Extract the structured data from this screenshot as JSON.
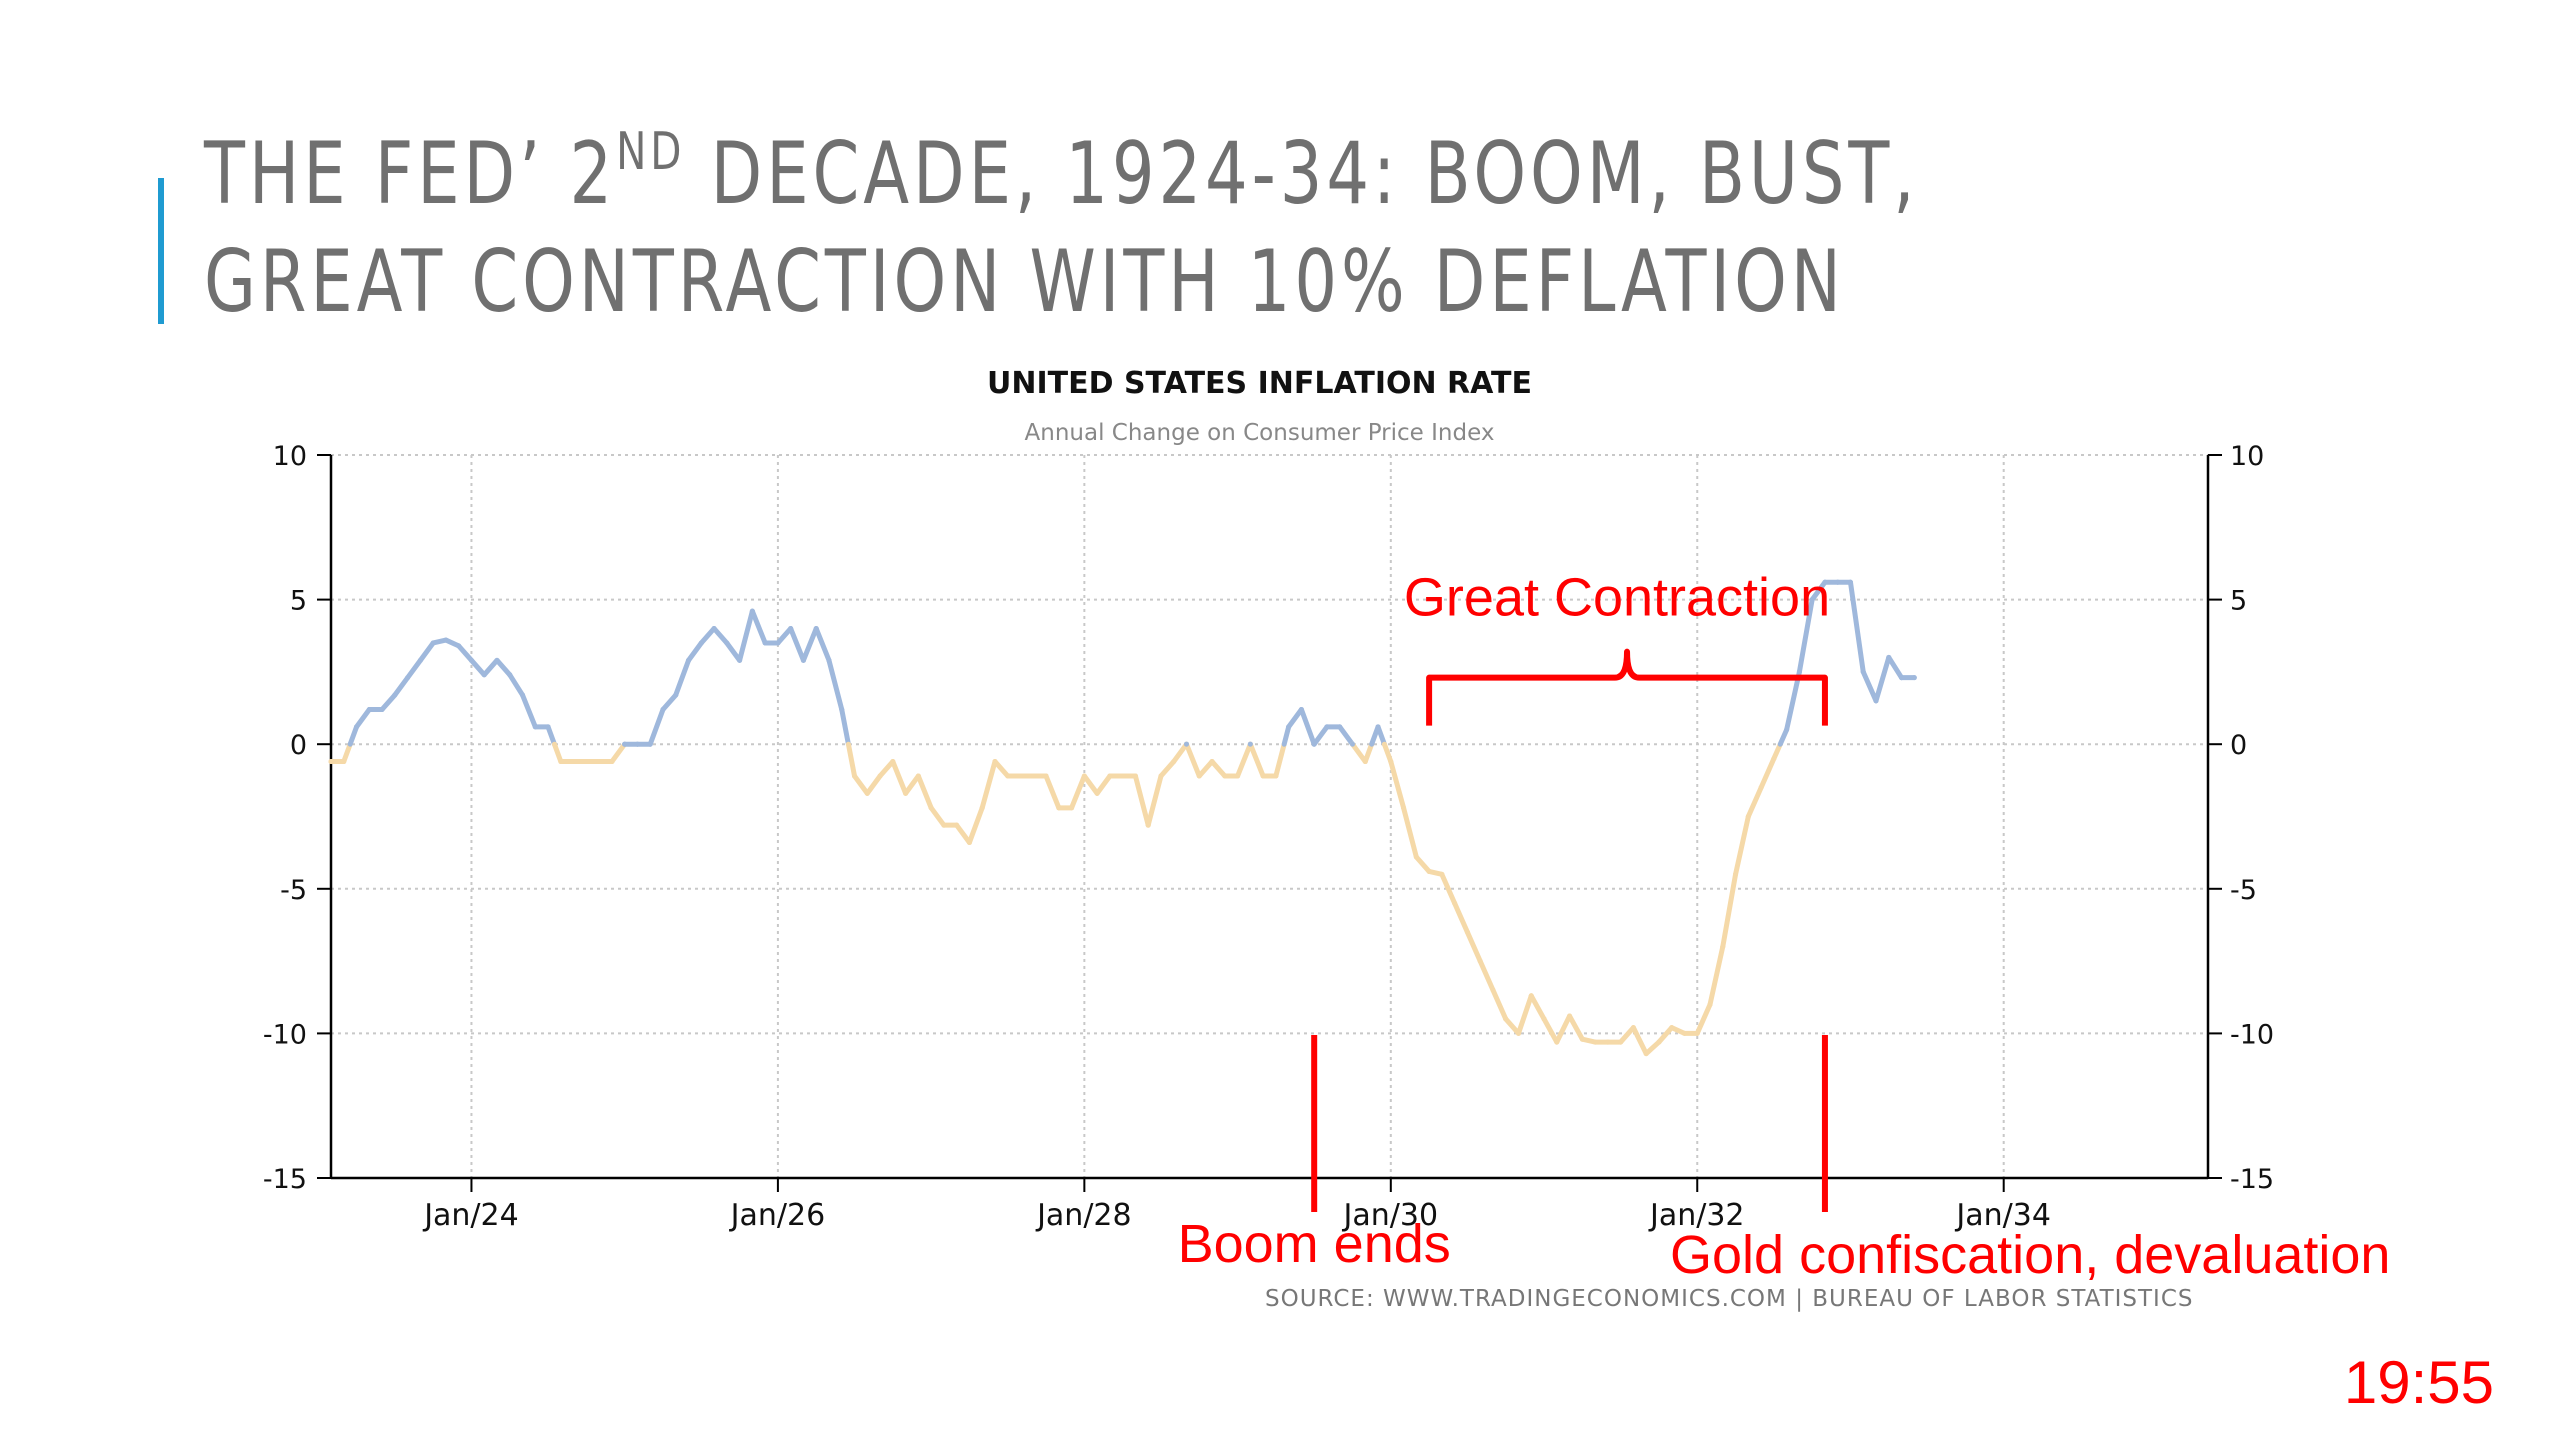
{
  "slide": {
    "title_part1": "THE FED’ 2",
    "title_sup": "ND",
    "title_part2": " DECADE, 1924-34:  BOOM, BUST,",
    "title_line2": "GREAT CONTRACTION WITH 10% DEFLATION",
    "title_color": "#707070",
    "accent_color": "#1f9bd1",
    "timer": "19:55"
  },
  "chart_data": {
    "type": "line",
    "title": "UNITED STATES INFLATION RATE",
    "subtitle": "Annual Change on Consumer Price Index",
    "source": "SOURCE: WWW.TRADINGECONOMICS.COM  |  BUREAU OF LABOR STATISTICS",
    "ylim": [
      -15,
      10
    ],
    "yticks": [
      10,
      5,
      0,
      -5,
      -10,
      -15
    ],
    "ytick_labels": [
      "10",
      "5",
      "0",
      "-5",
      "-10",
      "-15"
    ],
    "xlim": [
      "1923-02",
      "1935-05"
    ],
    "xticks": [
      "1924-01",
      "1926-01",
      "1928-01",
      "1930-01",
      "1932-01",
      "1934-01"
    ],
    "xtick_labels": [
      "Jan/24",
      "Jan/26",
      "Jan/28",
      "Jan/30",
      "Jan/32",
      "Jan/34"
    ],
    "grid": true,
    "colors": {
      "positive": "#9fb8dc",
      "negative": "#f5d9a8",
      "axis": "#000000",
      "grid": "#c8c8c8",
      "annotation": "#ff0000"
    },
    "series": [
      {
        "points": [
          [
            "1923-02",
            -0.6
          ],
          [
            "1923-03",
            -0.6
          ],
          [
            "1923-04",
            0.6
          ],
          [
            "1923-05",
            1.2
          ],
          [
            "1923-06",
            1.2
          ],
          [
            "1923-07",
            1.7
          ],
          [
            "1923-08",
            2.3
          ],
          [
            "1923-09",
            2.9
          ],
          [
            "1923-10",
            3.5
          ],
          [
            "1923-11",
            3.6
          ],
          [
            "1923-12",
            3.4
          ],
          [
            "1924-01",
            2.9
          ],
          [
            "1924-02",
            2.4
          ],
          [
            "1924-03",
            2.9
          ],
          [
            "1924-04",
            2.4
          ],
          [
            "1924-05",
            1.7
          ],
          [
            "1924-06",
            0.6
          ],
          [
            "1924-07",
            0.6
          ],
          [
            "1924-08",
            -0.6
          ],
          [
            "1924-09",
            -0.6
          ],
          [
            "1924-10",
            -0.6
          ],
          [
            "1924-11",
            -0.6
          ],
          [
            "1924-12",
            -0.6
          ],
          [
            "1925-01",
            0.0
          ],
          [
            "1925-02",
            0.0
          ],
          [
            "1925-03",
            0.0
          ],
          [
            "1925-04",
            1.2
          ],
          [
            "1925-05",
            1.7
          ],
          [
            "1925-06",
            2.9
          ],
          [
            "1925-07",
            3.5
          ],
          [
            "1925-08",
            4.0
          ],
          [
            "1925-09",
            3.5
          ],
          [
            "1925-10",
            2.9
          ],
          [
            "1925-11",
            4.6
          ],
          [
            "1925-12",
            3.5
          ],
          [
            "1926-01",
            3.5
          ],
          [
            "1926-02",
            4.0
          ],
          [
            "1926-03",
            2.9
          ],
          [
            "1926-04",
            4.0
          ],
          [
            "1926-05",
            2.9
          ],
          [
            "1926-06",
            1.2
          ],
          [
            "1926-07",
            -1.1
          ],
          [
            "1926-08",
            -1.7
          ],
          [
            "1926-09",
            -1.1
          ],
          [
            "1926-10",
            -0.6
          ],
          [
            "1926-11",
            -1.7
          ],
          [
            "1926-12",
            -1.1
          ],
          [
            "1927-01",
            -2.2
          ],
          [
            "1927-02",
            -2.8
          ],
          [
            "1927-03",
            -2.8
          ],
          [
            "1927-04",
            -3.4
          ],
          [
            "1927-05",
            -2.2
          ],
          [
            "1927-06",
            -0.6
          ],
          [
            "1927-07",
            -1.1
          ],
          [
            "1927-08",
            -1.1
          ],
          [
            "1927-09",
            -1.1
          ],
          [
            "1927-10",
            -1.1
          ],
          [
            "1927-11",
            -2.2
          ],
          [
            "1927-12",
            -2.2
          ],
          [
            "1928-01",
            -1.1
          ],
          [
            "1928-02",
            -1.7
          ],
          [
            "1928-03",
            -1.1
          ],
          [
            "1928-04",
            -1.1
          ],
          [
            "1928-05",
            -1.1
          ],
          [
            "1928-06",
            -2.8
          ],
          [
            "1928-07",
            -1.1
          ],
          [
            "1928-08",
            -0.6
          ],
          [
            "1928-09",
            0.0
          ],
          [
            "1928-10",
            -1.1
          ],
          [
            "1928-11",
            -0.6
          ],
          [
            "1928-12",
            -1.1
          ],
          [
            "1929-01",
            -1.1
          ],
          [
            "1929-02",
            0.0
          ],
          [
            "1929-03",
            -1.1
          ],
          [
            "1929-04",
            -1.1
          ],
          [
            "1929-05",
            0.6
          ],
          [
            "1929-06",
            1.2
          ],
          [
            "1929-07",
            0.0
          ],
          [
            "1929-08",
            0.6
          ],
          [
            "1929-09",
            0.6
          ],
          [
            "1929-10",
            0.0
          ],
          [
            "1929-11",
            -0.6
          ],
          [
            "1929-12",
            0.6
          ],
          [
            "1930-01",
            -0.6
          ],
          [
            "1930-02",
            -2.2
          ],
          [
            "1930-03",
            -3.9
          ],
          [
            "1930-04",
            -4.4
          ],
          [
            "1930-05",
            -4.5
          ],
          [
            "1930-06",
            -5.5
          ],
          [
            "1930-07",
            -6.5
          ],
          [
            "1930-08",
            -7.5
          ],
          [
            "1930-09",
            -8.5
          ],
          [
            "1930-10",
            -9.5
          ],
          [
            "1930-11",
            -10.0
          ],
          [
            "1930-12",
            -8.7
          ],
          [
            "1931-01",
            -9.5
          ],
          [
            "1931-02",
            -10.3
          ],
          [
            "1931-03",
            -9.4
          ],
          [
            "1931-04",
            -10.2
          ],
          [
            "1931-05",
            -10.3
          ],
          [
            "1931-06",
            -10.3
          ],
          [
            "1931-07",
            -10.3
          ],
          [
            "1931-08",
            -9.8
          ],
          [
            "1931-09",
            -10.7
          ],
          [
            "1931-10",
            -10.3
          ],
          [
            "1931-11",
            -9.8
          ],
          [
            "1931-12",
            -10.0
          ],
          [
            "1932-01",
            -10.0
          ],
          [
            "1932-02",
            -9.0
          ],
          [
            "1932-03",
            -7.0
          ],
          [
            "1932-04",
            -4.5
          ],
          [
            "1932-05",
            -2.5
          ],
          [
            "1932-06",
            -1.5
          ],
          [
            "1932-07",
            -0.5
          ],
          [
            "1932-08",
            0.5
          ],
          [
            "1932-09",
            2.5
          ],
          [
            "1932-10",
            5.0
          ],
          [
            "1932-11",
            5.6
          ],
          [
            "1932-12",
            5.6
          ],
          [
            "1933-01",
            5.6
          ],
          [
            "1933-02",
            2.5
          ],
          [
            "1933-03",
            1.5
          ],
          [
            "1933-04",
            3.0
          ],
          [
            "1933-05",
            2.3
          ],
          [
            "1933-06",
            2.3
          ]
        ]
      }
    ],
    "annotations": [
      {
        "text": "Great Contraction",
        "type": "brace",
        "from": "1930-04",
        "to": "1932-11",
        "y": 2.3
      },
      {
        "text": "Boom ends",
        "type": "vline",
        "x": "1929-07"
      },
      {
        "text": "Gold confiscation, devaluation",
        "type": "vline",
        "x": "1932-11"
      }
    ]
  }
}
